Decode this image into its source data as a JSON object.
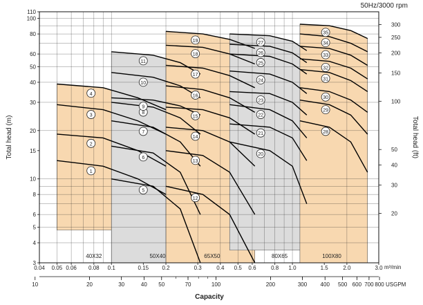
{
  "chart_data": {
    "type": "area",
    "title": "50Hz/3000 rpm",
    "xlabel": "Capacity",
    "ylabel": "Total head (m)",
    "y2label": "Total head (ft)",
    "x_unit": "m³/min",
    "x2_unit": "USGPM",
    "xlim": [
      0.04,
      3.0
    ],
    "ylim": [
      3,
      110
    ],
    "x_scale": "log",
    "y_scale": "log",
    "grid": true,
    "x_ticks": [
      "0.04",
      "0.05",
      "0.06",
      "0.08",
      "0.1",
      "0.15",
      "0.2",
      "0.3",
      "0.4",
      "0.5",
      "0.6",
      "0.8",
      "1.0",
      "1.5",
      "2.0",
      "3.0"
    ],
    "x2_ticks": [
      "10",
      "20",
      "30",
      "40",
      "50",
      "70",
      "100",
      "200",
      "300",
      "400",
      "500",
      "600",
      "700",
      "800"
    ],
    "y_ticks": [
      "3",
      "4",
      "5",
      "6",
      "8",
      "10",
      "15",
      "20",
      "30",
      "40",
      "50",
      "60",
      "80",
      "100",
      "110"
    ],
    "y2_ticks": [
      "20",
      "30",
      "40",
      "50",
      "100",
      "150",
      "200",
      "250",
      "300"
    ],
    "size_groups": [
      {
        "label": "40X32",
        "q": 0.08
      },
      {
        "label": "50X40",
        "q": 0.18
      },
      {
        "label": "65X50",
        "q": 0.36
      },
      {
        "label": "80X65",
        "q": 0.85
      },
      {
        "label": "100X80",
        "q": 1.65
      }
    ],
    "series": [
      {
        "name": "1",
        "group": "40X32",
        "q": [
          0.05,
          0.09,
          0.14,
          0.2
        ],
        "h": [
          13,
          12,
          10,
          8
        ]
      },
      {
        "name": "2",
        "group": "40X32",
        "q": [
          0.05,
          0.09,
          0.14,
          0.2
        ],
        "h": [
          19,
          18,
          15,
          12
        ]
      },
      {
        "name": "3",
        "group": "40X32",
        "q": [
          0.05,
          0.09,
          0.14,
          0.2
        ],
        "h": [
          29,
          27,
          23,
          19
        ]
      },
      {
        "name": "4",
        "group": "40X32",
        "q": [
          0.05,
          0.09,
          0.14,
          0.2
        ],
        "h": [
          39,
          37,
          32,
          27
        ]
      },
      {
        "name": "5",
        "group": "50X40",
        "q": [
          0.1,
          0.17,
          0.24,
          0.31
        ],
        "h": [
          10,
          9,
          6.5,
          3
        ]
      },
      {
        "name": "6",
        "group": "50X40",
        "q": [
          0.1,
          0.17,
          0.24,
          0.31
        ],
        "h": [
          16,
          14.5,
          11,
          6
        ]
      },
      {
        "name": "7",
        "group": "50X40",
        "q": [
          0.1,
          0.17,
          0.24,
          0.31
        ],
        "h": [
          23,
          21,
          17,
          12
        ]
      },
      {
        "name": "8",
        "group": "50X40",
        "q": [
          0.1,
          0.17,
          0.24,
          0.31
        ],
        "h": [
          30,
          28,
          24,
          19
        ]
      },
      {
        "name": "9",
        "group": "50X40",
        "q": [
          0.1,
          0.17,
          0.24,
          0.31
        ],
        "h": [
          32,
          31,
          28.5,
          25
        ]
      },
      {
        "name": "10",
        "group": "50X40",
        "q": [
          0.1,
          0.17,
          0.24,
          0.31
        ],
        "h": [
          46,
          43,
          38,
          32
        ]
      },
      {
        "name": "11",
        "group": "50X40",
        "q": [
          0.1,
          0.17,
          0.24,
          0.31
        ],
        "h": [
          62,
          59,
          53,
          45
        ]
      },
      {
        "name": "12",
        "group": "65X50",
        "q": [
          0.2,
          0.32,
          0.45,
          0.62
        ],
        "h": [
          9,
          8,
          6,
          3
        ]
      },
      {
        "name": "13",
        "group": "65X50",
        "q": [
          0.2,
          0.32,
          0.45,
          0.62
        ],
        "h": [
          15,
          14,
          11,
          6
        ]
      },
      {
        "name": "14",
        "group": "65X50",
        "q": [
          0.2,
          0.32,
          0.45,
          0.62
        ],
        "h": [
          21,
          20,
          17,
          12
        ]
      },
      {
        "name": "15",
        "group": "65X50",
        "q": [
          0.2,
          0.32,
          0.45,
          0.62
        ],
        "h": [
          28,
          27,
          24,
          19
        ]
      },
      {
        "name": "16",
        "group": "65X50",
        "q": [
          0.2,
          0.32,
          0.45,
          0.62
        ],
        "h": [
          38,
          36,
          32,
          26
        ]
      },
      {
        "name": "17",
        "group": "65X50",
        "q": [
          0.2,
          0.32,
          0.45,
          0.62
        ],
        "h": [
          51,
          49,
          44,
          37
        ]
      },
      {
        "name": "18",
        "group": "65X50",
        "q": [
          0.2,
          0.32,
          0.45,
          0.62
        ],
        "h": [
          68,
          66,
          60,
          52
        ]
      },
      {
        "name": "19",
        "group": "65X50",
        "q": [
          0.2,
          0.32,
          0.45,
          0.62
        ],
        "h": [
          83,
          80,
          74,
          65
        ]
      },
      {
        "name": "20",
        "group": "80X65",
        "q": [
          0.45,
          0.75,
          1.0,
          1.2
        ],
        "h": [
          17,
          15,
          12,
          7
        ]
      },
      {
        "name": "21",
        "group": "80X65",
        "q": [
          0.45,
          0.75,
          1.0,
          1.2
        ],
        "h": [
          22,
          21,
          18,
          13
        ]
      },
      {
        "name": "22",
        "group": "80X65",
        "q": [
          0.45,
          0.75,
          1.0,
          1.2
        ],
        "h": [
          29,
          27,
          23,
          18
        ]
      },
      {
        "name": "23",
        "group": "80X65",
        "q": [
          0.45,
          0.75,
          1.0,
          1.2
        ],
        "h": [
          35,
          34,
          30,
          25
        ]
      },
      {
        "name": "24",
        "group": "80X65",
        "q": [
          0.45,
          0.75,
          1.0,
          1.2
        ],
        "h": [
          47,
          45,
          40,
          34
        ]
      },
      {
        "name": "25",
        "group": "80X65",
        "q": [
          0.45,
          0.75,
          1.0,
          1.2
        ],
        "h": [
          60,
          58,
          52,
          45
        ]
      },
      {
        "name": "26",
        "group": "80X65",
        "q": [
          0.45,
          0.75,
          1.0,
          1.2
        ],
        "h": [
          69,
          67,
          61,
          53
        ]
      },
      {
        "name": "27",
        "group": "80X65",
        "q": [
          0.45,
          0.75,
          1.0,
          1.2
        ],
        "h": [
          80,
          78,
          72,
          63
        ]
      },
      {
        "name": "28",
        "group": "100X80",
        "q": [
          1.1,
          1.6,
          2.1,
          2.6
        ],
        "h": [
          23,
          21,
          17,
          11
        ]
      },
      {
        "name": "29",
        "group": "100X80",
        "q": [
          1.1,
          1.6,
          2.1,
          2.6
        ],
        "h": [
          31,
          29,
          25,
          19
        ]
      },
      {
        "name": "30",
        "group": "100X80",
        "q": [
          1.1,
          1.6,
          2.1,
          2.6
        ],
        "h": [
          37,
          35,
          31,
          26
        ]
      },
      {
        "name": "31",
        "group": "100X80",
        "q": [
          1.1,
          1.6,
          2.1,
          2.6
        ],
        "h": [
          48,
          46,
          41,
          35
        ]
      },
      {
        "name": "32",
        "group": "100X80",
        "q": [
          1.1,
          1.6,
          2.1,
          2.6
        ],
        "h": [
          56,
          54,
          49,
          42
        ]
      },
      {
        "name": "33",
        "group": "100X80",
        "q": [
          1.1,
          1.6,
          2.1,
          2.6
        ],
        "h": [
          67,
          65,
          59,
          51
        ]
      },
      {
        "name": "34",
        "group": "100X80",
        "q": [
          1.1,
          1.6,
          2.1,
          2.6
        ],
        "h": [
          80,
          77,
          70,
          62
        ]
      },
      {
        "name": "35",
        "group": "100X80",
        "q": [
          1.1,
          1.6,
          2.1,
          2.6
        ],
        "h": [
          92,
          90,
          84,
          75
        ]
      }
    ],
    "colors": {
      "tan": "#f8d8b0",
      "gray": "#dcdcdc",
      "grid": "#222222",
      "curve": "#000000"
    }
  }
}
